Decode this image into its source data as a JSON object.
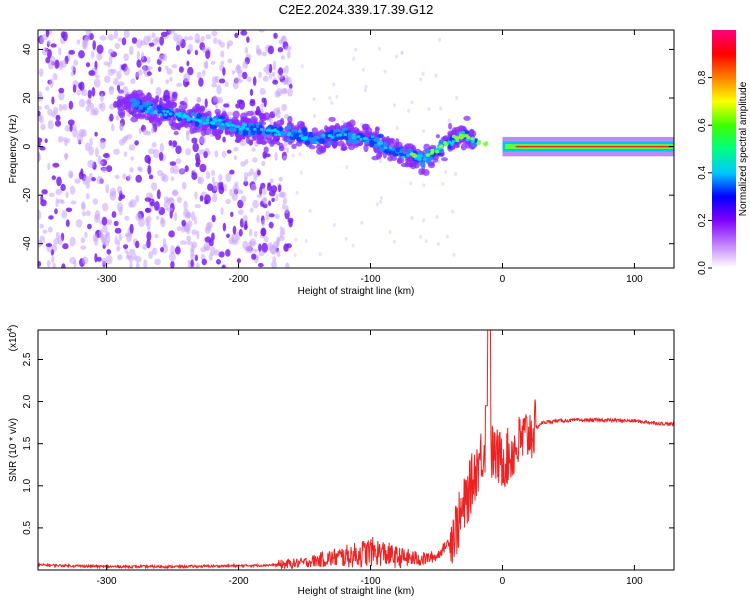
{
  "chart_data": [
    {
      "type": "heatmap",
      "title": "C2E2.2024.339.17.39.G12",
      "xlabel": "Height of straight line (km)",
      "ylabel": "Frequency (Hz)",
      "xlim": [
        -352,
        130
      ],
      "ylim": [
        -50,
        48
      ],
      "xticks": [
        -300,
        -200,
        -100,
        0,
        100
      ],
      "yticks": [
        -40,
        -20,
        0,
        20,
        40
      ],
      "grid": false,
      "colorbar": {
        "label": "Normalized spectral amplitude",
        "range": [
          0.0,
          1.0
        ],
        "ticks": [
          "0.0",
          "0.2",
          "0.4",
          "0.6",
          "0.8"
        ],
        "colors": [
          "#ffffff",
          "#c080ff",
          "#8000ff",
          "#0000ff",
          "#00c8ff",
          "#00ff80",
          "#40ff00",
          "#ffff00",
          "#ff8000",
          "#ff0000",
          "#ff0080"
        ]
      },
      "ridge": {
        "description_of_trace": "spectral ridge frequency vs height",
        "x": [
          -280,
          -260,
          -240,
          -220,
          -200,
          -180,
          -160,
          -140,
          -120,
          -100,
          -80,
          -60,
          -40,
          -30,
          -20,
          -10,
          0,
          10,
          20,
          50,
          100,
          130
        ],
        "y": [
          18,
          14,
          12,
          10,
          8,
          7,
          5,
          3,
          5,
          3,
          -2,
          -5,
          2,
          5,
          2,
          1,
          2,
          0,
          0,
          0,
          0,
          0
        ]
      }
    },
    {
      "type": "line",
      "xlabel": "Height of straight line (km)",
      "ylabel": "SNR (10 * v/v)",
      "scale_label": "(x10",
      "scale_exponent": "4",
      "xlim": [
        -352,
        130
      ],
      "ylim": [
        0,
        2.85
      ],
      "xticks": [
        -300,
        -200,
        -100,
        0,
        100
      ],
      "yticks": [
        0.5,
        1.0,
        1.5,
        2.0,
        2.5
      ],
      "grid": false,
      "series": [
        {
          "color": "#ee2222",
          "x": [
            -352,
            -300,
            -250,
            -200,
            -170,
            -150,
            -130,
            -110,
            -100,
            -90,
            -80,
            -70,
            -60,
            -50,
            -45,
            -40,
            -35,
            -30,
            -25,
            -20,
            -15,
            -12,
            -10,
            -8,
            -5,
            0,
            5,
            10,
            15,
            20,
            25,
            30,
            40,
            60,
            80,
            100,
            120,
            130
          ],
          "y": [
            0.06,
            0.04,
            0.04,
            0.05,
            0.06,
            0.09,
            0.14,
            0.18,
            0.22,
            0.2,
            0.15,
            0.14,
            0.13,
            0.16,
            0.25,
            0.35,
            0.5,
            0.7,
            0.95,
            1.2,
            1.4,
            1.45,
            1.45,
            1.4,
            1.35,
            1.3,
            1.35,
            1.45,
            1.55,
            1.62,
            1.68,
            1.75,
            1.77,
            1.78,
            1.78,
            1.77,
            1.74,
            1.73
          ]
        }
      ]
    }
  ]
}
